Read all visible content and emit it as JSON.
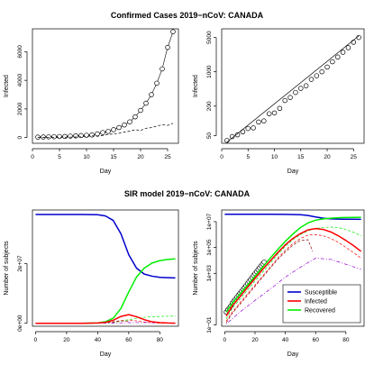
{
  "titles": {
    "top": "Confirmed Cases 2019−nCoV: CANADA",
    "bottom": "SIR model 2019−nCoV: CANADA"
  },
  "chart_data": [
    {
      "type": "scatter",
      "xlabel": "Day",
      "ylabel": "Infected",
      "xlim": [
        0,
        27
      ],
      "ylim": [
        -400,
        7600
      ],
      "xticks": [
        0,
        5,
        10,
        15,
        20,
        25
      ],
      "yticks": [
        0,
        2000,
        4000,
        6000
      ],
      "ytick_labels": [
        "0",
        "2000",
        "4000",
        "6000"
      ],
      "series": [
        {
          "style": "points-line",
          "x": [
            1,
            2,
            3,
            4,
            5,
            6,
            7,
            8,
            9,
            10,
            11,
            12,
            13,
            14,
            15,
            16,
            17,
            18,
            19,
            20,
            21,
            22,
            23,
            24,
            25,
            26
          ],
          "values": [
            30,
            40,
            50,
            60,
            75,
            80,
            100,
            120,
            140,
            160,
            180,
            260,
            350,
            430,
            550,
            700,
            880,
            1100,
            1450,
            1900,
            2400,
            3000,
            3800,
            4800,
            6300,
            7400
          ]
        },
        {
          "style": "dashed",
          "x": [
            1,
            2,
            3,
            4,
            5,
            6,
            7,
            8,
            9,
            10,
            11,
            12,
            13,
            14,
            15,
            16,
            17,
            18,
            19,
            20,
            21,
            22,
            23,
            24,
            25,
            26
          ],
          "values": [
            10,
            10,
            12,
            15,
            20,
            25,
            30,
            40,
            50,
            80,
            120,
            90,
            150,
            220,
            250,
            300,
            380,
            450,
            550,
            500,
            650,
            700,
            800,
            900,
            850,
            1000
          ]
        }
      ]
    },
    {
      "type": "scatter",
      "xlabel": "Day",
      "ylabel": "Infected",
      "xlim": [
        0,
        27
      ],
      "ylim": [
        35,
        7500
      ],
      "yscale": "log",
      "xticks": [
        0,
        5,
        10,
        15,
        20,
        25
      ],
      "yticks": [
        50,
        200,
        1000,
        5000
      ],
      "ytick_labels": [
        "50",
        "200",
        "1000",
        "5000"
      ],
      "series": [
        {
          "style": "points",
          "x": [
            1,
            2,
            3,
            4,
            5,
            6,
            7,
            8,
            9,
            10,
            11,
            12,
            13,
            14,
            15,
            16,
            17,
            18,
            19,
            20,
            21,
            22,
            23,
            24,
            25,
            26
          ],
          "values": [
            40,
            48,
            52,
            60,
            70,
            72,
            95,
            100,
            140,
            145,
            180,
            260,
            300,
            380,
            460,
            520,
            700,
            830,
            1000,
            1250,
            1600,
            2000,
            2500,
            3100,
            4000,
            5000
          ]
        },
        {
          "style": "fit-line",
          "x": [
            1,
            26
          ],
          "values": [
            37,
            5400
          ]
        }
      ]
    },
    {
      "type": "line",
      "xlabel": "Day",
      "ylabel": "Number of subjects",
      "xlim": [
        -2,
        92
      ],
      "ylim": [
        -1000000,
        38000000
      ],
      "xticks": [
        0,
        20,
        40,
        60,
        80
      ],
      "yticks": [
        0,
        20000000
      ],
      "ytick_labels": [
        "0e+00",
        "2e+07"
      ],
      "series": [
        {
          "name": "Susceptible",
          "color": "#0000cd",
          "x": [
            0,
            10,
            20,
            30,
            40,
            45,
            50,
            55,
            60,
            65,
            70,
            75,
            80,
            85,
            90
          ],
          "values": [
            36500000,
            36500000,
            36500000,
            36500000,
            36400000,
            36000000,
            34500000,
            30000000,
            23000000,
            18500000,
            16500000,
            15800000,
            15400000,
            15300000,
            15200000
          ]
        },
        {
          "name": "Recovered",
          "color": "#00ee00",
          "x": [
            0,
            10,
            20,
            30,
            40,
            45,
            50,
            55,
            60,
            65,
            70,
            75,
            80,
            85,
            90
          ],
          "values": [
            0,
            0,
            0,
            0,
            100000,
            500000,
            1700000,
            5000000,
            10500000,
            15500000,
            18500000,
            20200000,
            21000000,
            21400000,
            21600000
          ]
        },
        {
          "name": "Infected",
          "color": "#ff0000",
          "x": [
            0,
            10,
            20,
            30,
            40,
            45,
            50,
            55,
            60,
            65,
            70,
            75,
            80,
            85,
            90
          ],
          "values": [
            0,
            0,
            0,
            0,
            80000,
            300000,
            1000000,
            2300000,
            2900000,
            2200000,
            1200000,
            500000,
            200000,
            80000,
            30000
          ]
        },
        {
          "style": "dashed",
          "color": "#ff0000",
          "x": [
            0,
            10,
            20,
            30,
            40,
            45,
            50,
            55,
            60,
            65,
            70,
            75,
            80,
            85,
            90
          ],
          "values": [
            0,
            0,
            0,
            0,
            60000,
            200000,
            500000,
            900000,
            1100000,
            800000,
            400000,
            150000,
            60000,
            20000,
            10000
          ]
        },
        {
          "style": "dashed",
          "color": "#00ee00",
          "x": [
            0,
            10,
            20,
            30,
            40,
            45,
            50,
            55,
            60,
            65,
            70,
            75,
            80,
            85,
            90
          ],
          "values": [
            0,
            0,
            0,
            0,
            30000,
            100000,
            300000,
            700000,
            1200000,
            1700000,
            2000000,
            2200000,
            2300000,
            2350000,
            2400000
          ]
        },
        {
          "style": "dashed",
          "color": "#8b0000",
          "x": [
            0,
            10,
            20,
            30,
            40,
            45,
            50,
            55,
            60
          ],
          "values": [
            0,
            0,
            0,
            0,
            50000,
            150000,
            400000,
            800000,
            600000
          ]
        },
        {
          "style": "dotdash",
          "color": "#9400d3",
          "x": [
            0,
            10,
            20,
            30,
            40,
            50,
            60,
            70,
            80,
            90
          ],
          "values": [
            0,
            0,
            0,
            0,
            10000,
            60000,
            200000,
            250000,
            150000,
            60000
          ]
        }
      ]
    },
    {
      "type": "line",
      "xlabel": "Day",
      "ylabel": "Number of subjects",
      "xlim": [
        -2,
        92
      ],
      "ylim": [
        0.08,
        80000000
      ],
      "yscale": "log",
      "xticks": [
        0,
        20,
        40,
        60,
        80
      ],
      "yticks": [
        0.1,
        1000,
        100000,
        10000000
      ],
      "ytick_labels": [
        "1e−01",
        "1e+03",
        "1e+05",
        "1e+07"
      ],
      "legend": {
        "position": "bottom-right",
        "entries": [
          {
            "label": "Susceptible",
            "color": "#0000cd"
          },
          {
            "label": "Infected",
            "color": "#ff0000"
          },
          {
            "label": "Recovered",
            "color": "#00ee00"
          }
        ]
      },
      "series": [
        {
          "name": "Susceptible",
          "color": "#0000cd",
          "x": [
            0,
            10,
            20,
            30,
            40,
            50,
            55,
            60,
            65,
            70,
            75,
            80,
            85,
            90
          ],
          "values": [
            37000000,
            37000000,
            37000000,
            37000000,
            36500000,
            34500000,
            30000000,
            23000000,
            18500000,
            16500000,
            15800000,
            15400000,
            15300000,
            15200000
          ]
        },
        {
          "name": "Recovered",
          "color": "#00ee00",
          "x": [
            1,
            5,
            10,
            15,
            20,
            25,
            30,
            35,
            40,
            45,
            50,
            55,
            60,
            65,
            70,
            75,
            80,
            85,
            90
          ],
          "values": [
            1,
            5,
            25,
            120,
            600,
            3000,
            15000,
            70000,
            300000,
            1100000,
            3500000,
            8000000,
            13000000,
            16500000,
            18500000,
            20000000,
            21000000,
            21400000,
            21600000
          ]
        },
        {
          "name": "Infected",
          "color": "#ff0000",
          "x": [
            1,
            5,
            10,
            15,
            20,
            25,
            30,
            35,
            40,
            45,
            50,
            55,
            60,
            65,
            70,
            75,
            80,
            85,
            90
          ],
          "values": [
            0.5,
            3,
            15,
            80,
            400,
            2000,
            9000,
            40000,
            160000,
            500000,
            1200000,
            2300000,
            2900000,
            2500000,
            1600000,
            800000,
            350000,
            140000,
            50000
          ]
        },
        {
          "style": "dashed",
          "color": "#00ee00",
          "x": [
            1,
            5,
            10,
            15,
            20,
            25,
            30,
            35,
            40,
            45,
            50,
            55,
            60,
            65,
            70,
            75,
            80,
            85,
            90
          ],
          "values": [
            0.3,
            2,
            10,
            50,
            250,
            1200,
            6000,
            30000,
            120000,
            400000,
            1000000,
            2000000,
            3000000,
            3600000,
            3800000,
            3500000,
            2500000,
            1500000,
            800000
          ]
        },
        {
          "style": "dashed",
          "color": "#ff0000",
          "x": [
            1,
            5,
            10,
            15,
            20,
            25,
            30,
            35,
            40,
            45,
            50,
            55,
            60,
            65,
            70,
            75,
            80,
            85,
            90
          ],
          "values": [
            0.2,
            1,
            5,
            25,
            120,
            600,
            3000,
            15000,
            60000,
            200000,
            500000,
            900000,
            1000000,
            800000,
            500000,
            250000,
            100000,
            40000,
            15000
          ]
        },
        {
          "style": "dashed",
          "color": "#8b0000",
          "x": [
            1,
            5,
            10,
            15,
            20,
            25,
            30,
            35,
            40,
            45,
            50,
            55,
            58
          ],
          "values": [
            0.15,
            0.8,
            4,
            20,
            100,
            500,
            2500,
            12000,
            45000,
            150000,
            350000,
            400000,
            50000
          ]
        },
        {
          "style": "dotdash",
          "color": "#9400d3",
          "x": [
            1,
            10,
            20,
            30,
            40,
            50,
            60,
            70,
            80,
            90
          ],
          "values": [
            0.12,
            1,
            8,
            60,
            500,
            3000,
            15000,
            12000,
            5000,
            2000
          ]
        },
        {
          "style": "points",
          "x": [
            1,
            2,
            3,
            4,
            5,
            6,
            7,
            8,
            9,
            10,
            11,
            12,
            13,
            14,
            15,
            16,
            17,
            18,
            19,
            20,
            21,
            22,
            23,
            24,
            25,
            26
          ],
          "values": [
            1,
            1.5,
            2,
            3,
            5,
            7,
            10,
            14,
            20,
            28,
            40,
            55,
            80,
            110,
            160,
            230,
            330,
            470,
            680,
            950,
            1350,
            1900,
            2700,
            3800,
            5300,
            7400
          ]
        }
      ]
    }
  ]
}
